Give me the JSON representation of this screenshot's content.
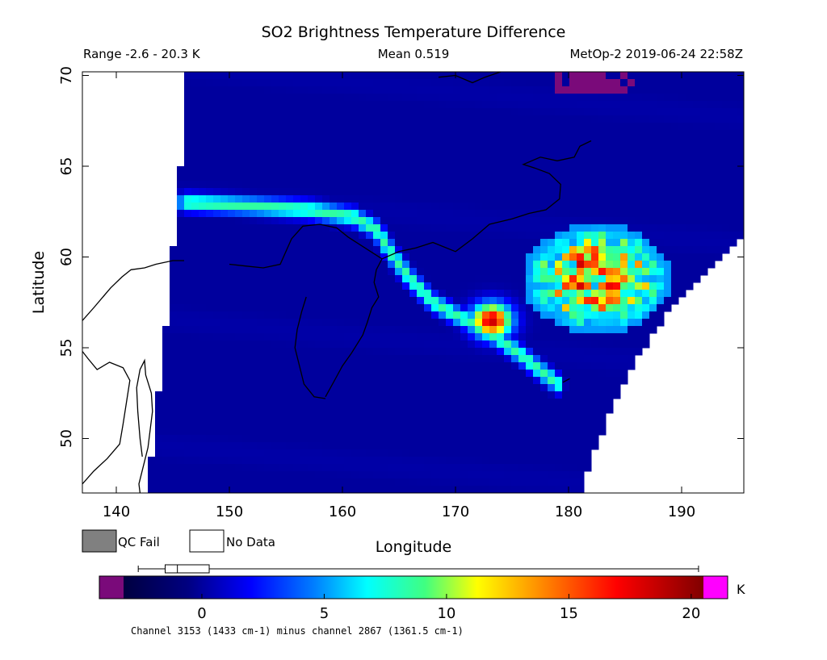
{
  "chart_data": {
    "type": "heatmap",
    "title": "SO2 Brightness Temperature Difference",
    "subtitle_left": "Range -2.6 - 20.3 K",
    "subtitle_center": "Mean 0.519",
    "subtitle_right": "MetOp-2 2019-06-24 22:58Z",
    "xlabel": "Longitude",
    "ylabel": "Latitude",
    "xlim": [
      137,
      195.5
    ],
    "ylim": [
      47,
      70.2
    ],
    "xticks": [
      140,
      150,
      160,
      170,
      180,
      190
    ],
    "yticks": [
      50,
      55,
      60,
      65,
      70
    ],
    "units": "K",
    "colorbar": {
      "range": [
        -3.2,
        20.5
      ],
      "ticks": [
        0,
        5,
        10,
        15,
        20
      ],
      "below_color": "#7a0a7a",
      "above_color": "#ff00ff",
      "caption": "Channel 3153 (1433 cm-1) minus channel 2867 (1361.5 cm-1)",
      "boxplot": {
        "min": -2.6,
        "q1": -1.5,
        "median": -1.0,
        "q3": 0.3,
        "max": 20.3
      }
    },
    "legend": [
      {
        "label": "QC Fail",
        "color": "#808080"
      },
      {
        "label": "No Data",
        "color": "#ffffff"
      }
    ],
    "background_value": -0.5,
    "plumes": [
      {
        "name": "plume",
        "path": [
          [
            146,
            63
          ],
          [
            152,
            62.8
          ],
          [
            157,
            62.6
          ],
          [
            161,
            62.2
          ],
          [
            163,
            61.5
          ],
          [
            164.5,
            60
          ],
          [
            166,
            58.8
          ],
          [
            168,
            57.5
          ],
          [
            170,
            56.8
          ],
          [
            172,
            56.2
          ],
          [
            174,
            55.4
          ],
          [
            176,
            54.5
          ],
          [
            178,
            53.5
          ],
          [
            179,
            53
          ]
        ],
        "peak": 9
      },
      {
        "name": "hotspot",
        "center": [
          173.2,
          56.5
        ],
        "peak": 18.5
      },
      {
        "name": "cloud",
        "center": [
          182.5,
          58.8
        ],
        "peak": 13
      }
    ],
    "grid": false
  }
}
